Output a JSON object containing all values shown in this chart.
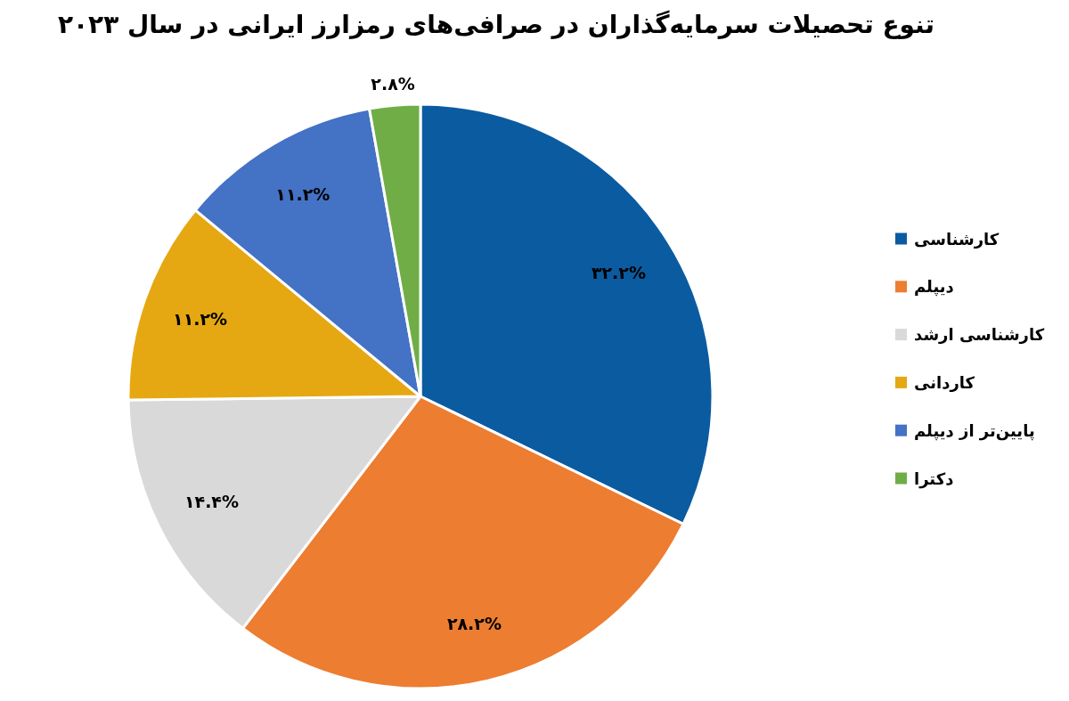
{
  "chart_data": {
    "type": "pie",
    "title": "تنوع تحصیلات سرمایه‌گذاران در صرافی‌های رمزارز ایرانی در سال ۲۰۲۳",
    "categories": [
      "کارشناسی",
      "دیپلم",
      "کارشناسی ارشد",
      "کاردانی",
      "پایین‌تر از دیپلم",
      "دکترا"
    ],
    "values": [
      32.2,
      28.2,
      14.4,
      11.2,
      11.2,
      2.8
    ],
    "colors": [
      "#0b5ba1",
      "#ed7d31",
      "#d9d9d9",
      "#e5a812",
      "#4472c4",
      "#70ad47"
    ],
    "value_labels": [
      "۳۲.۲%",
      "۲۸.۲%",
      "۱۴.۴%",
      "۱۱.۲%",
      "۱۱.۲%",
      "۲.۸%"
    ],
    "legend": "right"
  }
}
